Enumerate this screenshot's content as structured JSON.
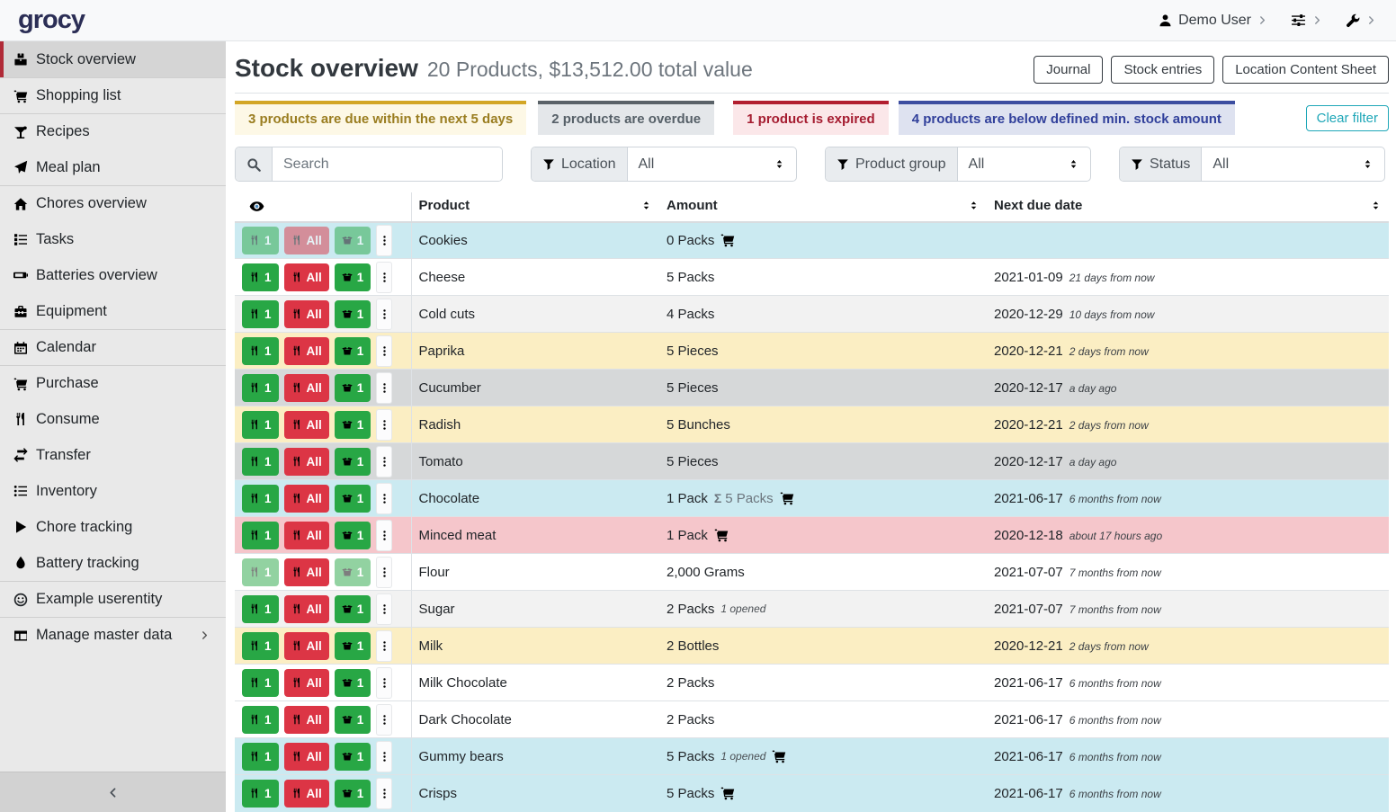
{
  "topbar": {
    "logo": "grocy",
    "user": "Demo User"
  },
  "sidebar": {
    "items": [
      {
        "label": "Stock overview",
        "icon": "boxes",
        "active": true,
        "divided": false
      },
      {
        "label": "Shopping list",
        "icon": "cart",
        "active": false,
        "divided": true
      },
      {
        "label": "Recipes",
        "icon": "cocktail",
        "active": false,
        "divided": true
      },
      {
        "label": "Meal plan",
        "icon": "plane",
        "active": false,
        "divided": false
      },
      {
        "label": "Chores overview",
        "icon": "home",
        "active": false,
        "divided": true
      },
      {
        "label": "Tasks",
        "icon": "tasks",
        "active": false,
        "divided": false
      },
      {
        "label": "Batteries overview",
        "icon": "battery",
        "active": false,
        "divided": false
      },
      {
        "label": "Equipment",
        "icon": "toolbox",
        "active": false,
        "divided": false
      },
      {
        "label": "Calendar",
        "icon": "calendar",
        "active": false,
        "divided": true
      },
      {
        "label": "Purchase",
        "icon": "cart",
        "active": false,
        "divided": true
      },
      {
        "label": "Consume",
        "icon": "utensils",
        "active": false,
        "divided": false
      },
      {
        "label": "Transfer",
        "icon": "exchange",
        "active": false,
        "divided": false
      },
      {
        "label": "Inventory",
        "icon": "list",
        "active": false,
        "divided": false
      },
      {
        "label": "Chore tracking",
        "icon": "play",
        "active": false,
        "divided": false
      },
      {
        "label": "Battery tracking",
        "icon": "drop",
        "active": false,
        "divided": false
      },
      {
        "label": "Example userentity",
        "icon": "smile",
        "active": false,
        "divided": true
      },
      {
        "label": "Manage master data",
        "icon": "grid",
        "active": false,
        "divided": true,
        "chevron": true
      }
    ]
  },
  "header": {
    "title": "Stock overview",
    "subtitle": "20 Products, $13,512.00 total value",
    "buttons": [
      "Journal",
      "Stock entries",
      "Location Content Sheet"
    ]
  },
  "alerts": [
    {
      "text": "3 products are due within the next 5 days",
      "type": "warning"
    },
    {
      "text": "2 products are overdue",
      "type": "secondary"
    },
    {
      "text": "1 product is expired",
      "type": "danger"
    },
    {
      "text": "4 products are below defined min. stock amount",
      "type": "belowmin"
    }
  ],
  "clear_filter_label": "Clear filter",
  "filters": {
    "search_placeholder": "Search",
    "groups": [
      {
        "label": "Location",
        "value": "All"
      },
      {
        "label": "Product group",
        "value": "All"
      },
      {
        "label": "Status",
        "value": "All"
      }
    ]
  },
  "row_buttons": {
    "consume_one": "1",
    "consume_all": "All",
    "open_one": "1"
  },
  "table": {
    "columns": [
      "Product",
      "Amount",
      "Next due date"
    ],
    "rows": [
      {
        "product": "Cookies",
        "qty": "0 Packs",
        "sum": "",
        "opened": "",
        "cart": true,
        "date": "",
        "note": "",
        "status": "info",
        "faded": [
          "c1",
          "ca",
          "op"
        ]
      },
      {
        "product": "Cheese",
        "qty": "5 Packs",
        "sum": "",
        "opened": "",
        "cart": false,
        "date": "2021-01-09",
        "note": "21 days from now",
        "status": "plain",
        "faded": []
      },
      {
        "product": "Cold cuts",
        "qty": "4 Packs",
        "sum": "",
        "opened": "",
        "cart": false,
        "date": "2020-12-29",
        "note": "10 days from now",
        "status": "stripe",
        "faded": []
      },
      {
        "product": "Paprika",
        "qty": "5 Pieces",
        "sum": "",
        "opened": "",
        "cart": false,
        "date": "2020-12-21",
        "note": "2 days from now",
        "status": "warning",
        "faded": []
      },
      {
        "product": "Cucumber",
        "qty": "5 Pieces",
        "sum": "",
        "opened": "",
        "cart": false,
        "date": "2020-12-17",
        "note": "a day ago",
        "status": "secondary",
        "faded": []
      },
      {
        "product": "Radish",
        "qty": "5 Bunches",
        "sum": "",
        "opened": "",
        "cart": false,
        "date": "2020-12-21",
        "note": "2 days from now",
        "status": "warning",
        "faded": []
      },
      {
        "product": "Tomato",
        "qty": "5 Pieces",
        "sum": "",
        "opened": "",
        "cart": false,
        "date": "2020-12-17",
        "note": "a day ago",
        "status": "secondary",
        "faded": []
      },
      {
        "product": "Chocolate",
        "qty": "1 Pack",
        "sum": "5 Packs",
        "opened": "",
        "cart": true,
        "date": "2021-06-17",
        "note": "6 months from now",
        "status": "info",
        "faded": []
      },
      {
        "product": "Minced meat",
        "qty": "1 Pack",
        "sum": "",
        "opened": "",
        "cart": true,
        "date": "2020-12-18",
        "note": "about 17 hours ago",
        "status": "danger",
        "faded": []
      },
      {
        "product": "Flour",
        "qty": "2,000 Grams",
        "sum": "",
        "opened": "",
        "cart": false,
        "date": "2021-07-07",
        "note": "7 months from now",
        "status": "plain",
        "faded": [
          "c1",
          "op"
        ]
      },
      {
        "product": "Sugar",
        "qty": "2 Packs",
        "sum": "",
        "opened": "1 opened",
        "cart": false,
        "date": "2021-07-07",
        "note": "7 months from now",
        "status": "stripe",
        "faded": []
      },
      {
        "product": "Milk",
        "qty": "2 Bottles",
        "sum": "",
        "opened": "",
        "cart": false,
        "date": "2020-12-21",
        "note": "2 days from now",
        "status": "warning",
        "faded": []
      },
      {
        "product": "Milk Chocolate",
        "qty": "2 Packs",
        "sum": "",
        "opened": "",
        "cart": false,
        "date": "2021-06-17",
        "note": "6 months from now",
        "status": "plain",
        "faded": []
      },
      {
        "product": "Dark Chocolate",
        "qty": "2 Packs",
        "sum": "",
        "opened": "",
        "cart": false,
        "date": "2021-06-17",
        "note": "6 months from now",
        "status": "plain",
        "faded": []
      },
      {
        "product": "Gummy bears",
        "qty": "5 Packs",
        "sum": "",
        "opened": "1 opened",
        "cart": true,
        "date": "2021-06-17",
        "note": "6 months from now",
        "status": "info",
        "faded": []
      },
      {
        "product": "Crisps",
        "qty": "5 Packs",
        "sum": "",
        "opened": "",
        "cart": true,
        "date": "2021-06-17",
        "note": "6 months from now",
        "status": "info",
        "faded": []
      }
    ]
  },
  "colors": {
    "accent_red": "#b02a37",
    "success_green": "#28a745",
    "danger_red": "#dc3545",
    "info_row": "#cbeaf1",
    "warning_row": "#fbeec3",
    "secondary_row": "#d6d8d9",
    "danger_row": "#f5c6cb",
    "teal_outline": "#1fa7b8",
    "logo_navy": "#2b2e55"
  }
}
